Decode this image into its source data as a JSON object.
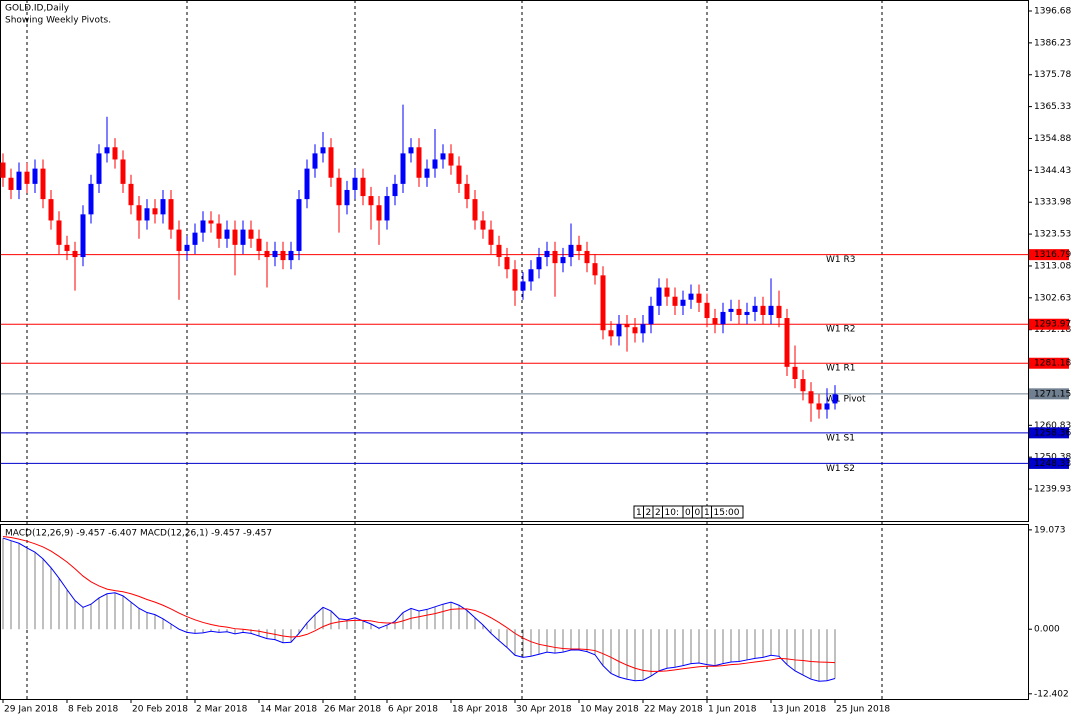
{
  "chart_data": [
    {
      "type": "candlestick",
      "title": "GOLD.ID,Daily",
      "subtitle": "Showing Weekly Pivots.",
      "open": [
        1347,
        1342,
        1338,
        1344,
        1340,
        1345,
        1335,
        1328,
        1320,
        1318,
        1316,
        1330,
        1340,
        1350,
        1352,
        1348,
        1340,
        1333,
        1328,
        1332,
        1330,
        1335,
        1325,
        1318,
        1320,
        1324,
        1328,
        1327,
        1322,
        1325,
        1320,
        1325,
        1322,
        1318,
        1316,
        1318,
        1315,
        1318,
        1335,
        1345,
        1350,
        1352,
        1342,
        1333,
        1338,
        1342,
        1336,
        1333,
        1328,
        1336,
        1340,
        1350,
        1352,
        1342,
        1345,
        1348,
        1350,
        1346,
        1340,
        1335,
        1328,
        1325,
        1320,
        1316,
        1312,
        1305,
        1308,
        1312,
        1316,
        1318,
        1314,
        1316,
        1320,
        1318,
        1314,
        1310,
        1292,
        1290,
        1294,
        1293,
        1291,
        1294,
        1300,
        1306,
        1303,
        1300,
        1302,
        1304,
        1301,
        1296,
        1294,
        1298,
        1299,
        1297,
        1298,
        1300,
        1297,
        1300,
        1296,
        1280,
        1276,
        1272,
        1268,
        1266,
        1268
      ],
      "high": [
        1350,
        1345,
        1347,
        1347,
        1348,
        1348,
        1338,
        1331,
        1323,
        1321,
        1333,
        1343,
        1353,
        1362,
        1355,
        1351,
        1343,
        1336,
        1335,
        1335,
        1338,
        1338,
        1328,
        1323,
        1327,
        1331,
        1331,
        1330,
        1328,
        1328,
        1328,
        1328,
        1325,
        1321,
        1321,
        1321,
        1321,
        1338,
        1348,
        1353,
        1357,
        1355,
        1345,
        1341,
        1345,
        1345,
        1339,
        1336,
        1339,
        1343,
        1366,
        1355,
        1355,
        1348,
        1358,
        1353,
        1353,
        1349,
        1343,
        1338,
        1331,
        1328,
        1323,
        1319,
        1315,
        1311,
        1315,
        1319,
        1321,
        1321,
        1319,
        1327,
        1323,
        1321,
        1317,
        1313,
        1295,
        1297,
        1297,
        1296,
        1297,
        1303,
        1309,
        1309,
        1306,
        1305,
        1307,
        1307,
        1304,
        1299,
        1301,
        1302,
        1302,
        1301,
        1303,
        1303,
        1309,
        1305,
        1299,
        1287,
        1279,
        1275,
        1271,
        1273,
        1274
      ],
      "low": [
        1339,
        1335,
        1335,
        1337,
        1337,
        1332,
        1325,
        1317,
        1315,
        1305,
        1313,
        1327,
        1337,
        1347,
        1345,
        1337,
        1330,
        1322,
        1325,
        1327,
        1327,
        1322,
        1302,
        1315,
        1317,
        1321,
        1324,
        1319,
        1319,
        1310,
        1317,
        1319,
        1315,
        1306,
        1313,
        1312,
        1312,
        1315,
        1332,
        1342,
        1347,
        1339,
        1324,
        1330,
        1335,
        1333,
        1325,
        1320,
        1325,
        1333,
        1337,
        1347,
        1339,
        1339,
        1342,
        1345,
        1343,
        1337,
        1332,
        1325,
        1322,
        1317,
        1313,
        1309,
        1300,
        1302,
        1305,
        1309,
        1313,
        1303,
        1311,
        1313,
        1315,
        1311,
        1307,
        1289,
        1287,
        1287,
        1285,
        1288,
        1288,
        1291,
        1297,
        1300,
        1297,
        1297,
        1299,
        1298,
        1293,
        1291,
        1291,
        1295,
        1294,
        1294,
        1295,
        1294,
        1294,
        1293,
        1277,
        1273,
        1269,
        1262,
        1263,
        1263,
        1266
      ],
      "close": [
        1342,
        1338,
        1344,
        1340,
        1345,
        1335,
        1328,
        1320,
        1318,
        1316,
        1330,
        1340,
        1350,
        1352,
        1348,
        1340,
        1333,
        1328,
        1332,
        1330,
        1335,
        1325,
        1318,
        1320,
        1324,
        1328,
        1327,
        1322,
        1325,
        1320,
        1325,
        1322,
        1318,
        1316,
        1318,
        1315,
        1318,
        1335,
        1345,
        1350,
        1352,
        1342,
        1333,
        1338,
        1342,
        1336,
        1333,
        1328,
        1336,
        1340,
        1350,
        1352,
        1342,
        1345,
        1348,
        1350,
        1346,
        1340,
        1335,
        1328,
        1325,
        1320,
        1316,
        1312,
        1305,
        1308,
        1312,
        1316,
        1318,
        1314,
        1316,
        1320,
        1318,
        1314,
        1310,
        1292,
        1290,
        1294,
        1293,
        1291,
        1294,
        1300,
        1306,
        1303,
        1300,
        1302,
        1304,
        1301,
        1296,
        1294,
        1298,
        1299,
        1297,
        1298,
        1300,
        1297,
        1300,
        1296,
        1280,
        1276,
        1272,
        1268,
        1266,
        1268,
        1271
      ],
      "up_color": "#0000ff",
      "down_color": "#ff0000",
      "ylim": [
        1229.45,
        1400.29
      ],
      "yticks": [
        1396.68,
        1386.23,
        1375.78,
        1365.33,
        1354.88,
        1344.43,
        1333.98,
        1323.53,
        1313.08,
        1302.63,
        1292.18,
        1260.83,
        1250.38,
        1239.93
      ],
      "pivots": [
        {
          "name": "W1 R3",
          "value": 1316.79,
          "color": "#ff0000"
        },
        {
          "name": "W1 R2",
          "value": 1293.97,
          "color": "#ff0000"
        },
        {
          "name": "W1 R1",
          "value": 1281.18,
          "color": "#ff0000"
        },
        {
          "name": "W1 Pivot",
          "value": 1271.15,
          "color": "#708090"
        },
        {
          "name": "W1 S1",
          "value": 1258.36,
          "color": "#0000cd"
        },
        {
          "name": "W1 S2",
          "value": 1248.33,
          "color": "#0000cd"
        }
      ],
      "status": [
        "1",
        "2",
        "2",
        "10:",
        "0",
        "0",
        "1",
        "15:00"
      ]
    },
    {
      "type": "macd",
      "title": "MACD(12,26,9) -9.457 -6.407 MACD(12,26,1) -9.457 -9.457",
      "categories": [
        "29 Jan 2018",
        null,
        null,
        null,
        null,
        null,
        null,
        null,
        "8 Feb 2018",
        null,
        null,
        null,
        null,
        null,
        null,
        null,
        "20 Feb 2018",
        null,
        null,
        null,
        null,
        null,
        null,
        null,
        "2 Mar 2018",
        null,
        null,
        null,
        null,
        null,
        null,
        null,
        "14 Mar 2018",
        null,
        null,
        null,
        null,
        null,
        null,
        null,
        "26 Mar 2018",
        null,
        null,
        null,
        null,
        null,
        null,
        null,
        "6 Apr 2018",
        null,
        null,
        null,
        null,
        null,
        null,
        null,
        "18 Apr 2018",
        null,
        null,
        null,
        null,
        null,
        null,
        null,
        "30 Apr 2018",
        null,
        null,
        null,
        null,
        null,
        null,
        null,
        "10 May 2018",
        null,
        null,
        null,
        null,
        null,
        null,
        null,
        "22 May 2018",
        null,
        null,
        null,
        null,
        null,
        null,
        null,
        "1 Jun 2018",
        null,
        null,
        null,
        null,
        null,
        null,
        null,
        "13 Jun 2018",
        null,
        null,
        null,
        null,
        null,
        null,
        null,
        "25 Jun 2018"
      ],
      "macd_values": [
        17.5,
        17.0,
        16.5,
        15.6,
        14.8,
        13.5,
        11.8,
        9.8,
        7.6,
        5.5,
        4.2,
        4.8,
        6.0,
        6.8,
        7.0,
        6.4,
        5.2,
        4.0,
        3.2,
        2.8,
        2.0,
        1.0,
        0.0,
        -0.6,
        -0.8,
        -0.7,
        -0.4,
        -0.6,
        -0.5,
        -0.9,
        -0.6,
        -0.8,
        -1.3,
        -1.8,
        -2.0,
        -2.6,
        -2.5,
        -0.8,
        1.2,
        2.8,
        4.2,
        3.5,
        2.0,
        1.8,
        2.2,
        1.6,
        1.0,
        0.2,
        0.8,
        1.5,
        3.2,
        4.0,
        3.5,
        3.8,
        4.3,
        4.8,
        5.2,
        4.6,
        3.6,
        2.2,
        0.8,
        -0.8,
        -2.2,
        -3.5,
        -5.0,
        -5.4,
        -5.2,
        -4.8,
        -4.4,
        -4.6,
        -4.4,
        -4.0,
        -4.0,
        -4.3,
        -4.9,
        -7.0,
        -8.5,
        -9.2,
        -9.6,
        -9.9,
        -9.8,
        -9.0,
        -8.0,
        -7.5,
        -7.3,
        -7.0,
        -6.6,
        -6.5,
        -6.8,
        -7.0,
        -6.6,
        -6.3,
        -6.2,
        -5.9,
        -5.6,
        -5.4,
        -5.0,
        -5.2,
        -6.8,
        -8.0,
        -8.8,
        -9.6,
        -10.0,
        -9.9,
        -9.457
      ],
      "signal_values": [
        17.8,
        17.6,
        17.3,
        16.9,
        16.4,
        15.8,
        15.0,
        14.0,
        12.9,
        11.6,
        10.2,
        9.1,
        8.3,
        7.7,
        7.4,
        7.2,
        6.8,
        6.3,
        5.7,
        5.2,
        4.6,
        3.9,
        3.1,
        2.4,
        1.8,
        1.3,
        0.9,
        0.6,
        0.4,
        0.1,
        0.0,
        -0.2,
        -0.4,
        -0.7,
        -1.0,
        -1.3,
        -1.5,
        -1.4,
        -1.0,
        -0.3,
        0.5,
        1.1,
        1.4,
        1.6,
        1.7,
        1.7,
        1.6,
        1.3,
        1.2,
        1.2,
        1.6,
        2.1,
        2.4,
        2.7,
        3.0,
        3.4,
        3.8,
        3.9,
        3.9,
        3.6,
        3.0,
        2.2,
        1.3,
        0.3,
        -0.8,
        -1.7,
        -2.4,
        -2.9,
        -3.2,
        -3.5,
        -3.7,
        -3.8,
        -3.8,
        -3.9,
        -4.1,
        -4.7,
        -5.4,
        -6.2,
        -6.9,
        -7.5,
        -7.9,
        -8.1,
        -8.1,
        -8.0,
        -7.8,
        -7.6,
        -7.4,
        -7.2,
        -7.1,
        -7.1,
        -7.0,
        -6.8,
        -6.7,
        -6.5,
        -6.3,
        -6.1,
        -5.9,
        -5.6,
        -5.7,
        -5.9,
        -6.0,
        -6.2,
        -6.3,
        -6.35,
        -6.407
      ],
      "hist_color": "#808080",
      "macd_color": "#0000ff",
      "signal_color": "#ff0000",
      "ylim": [
        -13.4,
        20.2
      ],
      "yticks": [
        19.073,
        {
          "value": 0,
          "label": "0.000"
        },
        -12.402
      ]
    }
  ]
}
